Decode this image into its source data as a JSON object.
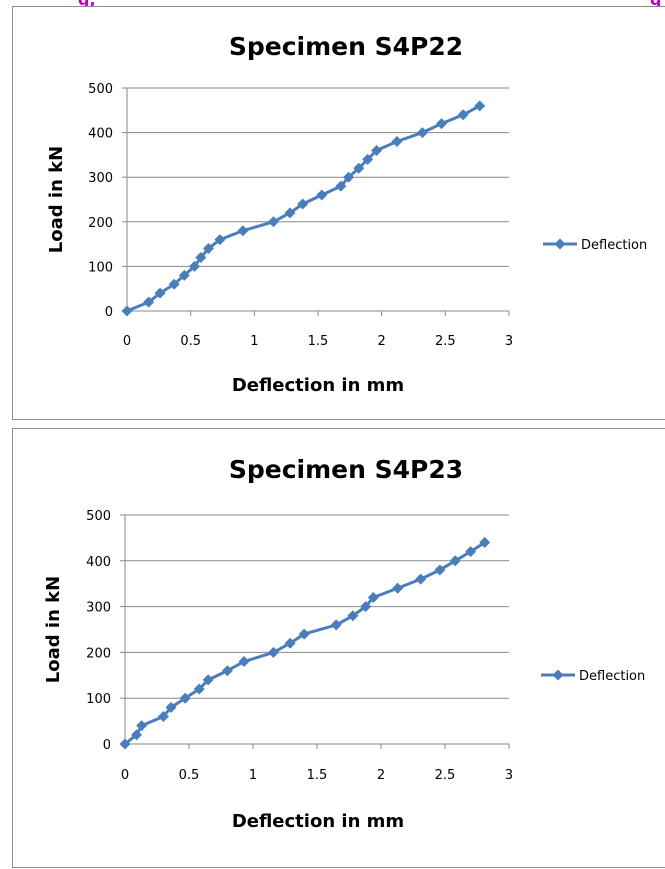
{
  "header_fragment": {
    "left": "g,",
    "right": "g"
  },
  "colors": {
    "series": "#4a7ebb",
    "grid": "#878787",
    "axis": "#878787",
    "header": "#c000c0"
  },
  "chart_data": [
    {
      "type": "line",
      "title": "Specimen S4P22",
      "xlabel": "Deflection in mm",
      "ylabel": "Load in kN",
      "xlim": [
        0,
        3
      ],
      "ylim": [
        0,
        500
      ],
      "x_ticks": [
        "0",
        "0.5",
        "1",
        "1.5",
        "2",
        "2.5",
        "3"
      ],
      "y_ticks": [
        "0",
        "100",
        "200",
        "300",
        "400",
        "500"
      ],
      "grid": "horizontal",
      "legend": "right",
      "series": [
        {
          "name": "Deflection",
          "marker": "diamond",
          "x": [
            0,
            0.17,
            0.26,
            0.37,
            0.45,
            0.53,
            0.58,
            0.64,
            0.73,
            0.91,
            1.15,
            1.28,
            1.38,
            1.53,
            1.68,
            1.74,
            1.82,
            1.89,
            1.96,
            2.12,
            2.32,
            2.47,
            2.64,
            2.77
          ],
          "y": [
            0,
            20,
            40,
            60,
            80,
            100,
            120,
            140,
            160,
            180,
            200,
            220,
            240,
            260,
            280,
            300,
            320,
            340,
            360,
            380,
            400,
            420,
            440,
            460
          ]
        }
      ]
    },
    {
      "type": "line",
      "title": "Specimen S4P23",
      "xlabel": "Deflection in mm",
      "ylabel": "Load in kN",
      "xlim": [
        0,
        3
      ],
      "ylim": [
        0,
        500
      ],
      "x_ticks": [
        "0",
        "0.5",
        "1",
        "1.5",
        "2",
        "2.5",
        "3"
      ],
      "y_ticks": [
        "0",
        "100",
        "200",
        "300",
        "400",
        "500"
      ],
      "grid": "horizontal",
      "legend": "right",
      "series": [
        {
          "name": "Deflection",
          "marker": "diamond",
          "x": [
            0,
            0.09,
            0.13,
            0.3,
            0.36,
            0.47,
            0.58,
            0.65,
            0.8,
            0.93,
            1.16,
            1.29,
            1.4,
            1.65,
            1.78,
            1.88,
            1.94,
            2.13,
            2.31,
            2.46,
            2.58,
            2.7,
            2.81
          ],
          "y": [
            0,
            20,
            40,
            60,
            80,
            100,
            120,
            140,
            160,
            180,
            200,
            220,
            240,
            260,
            280,
            300,
            320,
            340,
            360,
            380,
            400,
            420,
            440
          ]
        }
      ]
    }
  ]
}
